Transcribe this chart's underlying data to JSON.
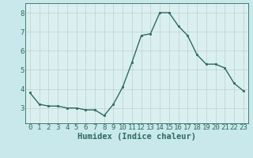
{
  "x": [
    0,
    1,
    2,
    3,
    4,
    5,
    6,
    7,
    8,
    9,
    10,
    11,
    12,
    13,
    14,
    15,
    16,
    17,
    18,
    19,
    20,
    21,
    22,
    23
  ],
  "y": [
    3.8,
    3.2,
    3.1,
    3.1,
    3.0,
    3.0,
    2.9,
    2.9,
    2.6,
    3.2,
    4.1,
    5.4,
    6.8,
    6.9,
    8.0,
    8.0,
    7.3,
    6.8,
    5.8,
    5.3,
    5.3,
    5.1,
    4.3,
    3.9
  ],
  "xlabel": "Humidex (Indice chaleur)",
  "ylim": [
    2.2,
    8.5
  ],
  "xlim": [
    -0.5,
    23.5
  ],
  "yticks": [
    3,
    4,
    5,
    6,
    7,
    8
  ],
  "xticks": [
    0,
    1,
    2,
    3,
    4,
    5,
    6,
    7,
    8,
    9,
    10,
    11,
    12,
    13,
    14,
    15,
    16,
    17,
    18,
    19,
    20,
    21,
    22,
    23
  ],
  "line_color": "#2e6b5e",
  "marker_color": "#2e6b5e",
  "bg_color": "#c8e8ec",
  "grid_color": "#b8b8b8",
  "plot_bg": "#daf0f0",
  "axis_color": "#2e6b5e",
  "xlabel_fontsize": 7.5,
  "tick_fontsize": 6.5
}
